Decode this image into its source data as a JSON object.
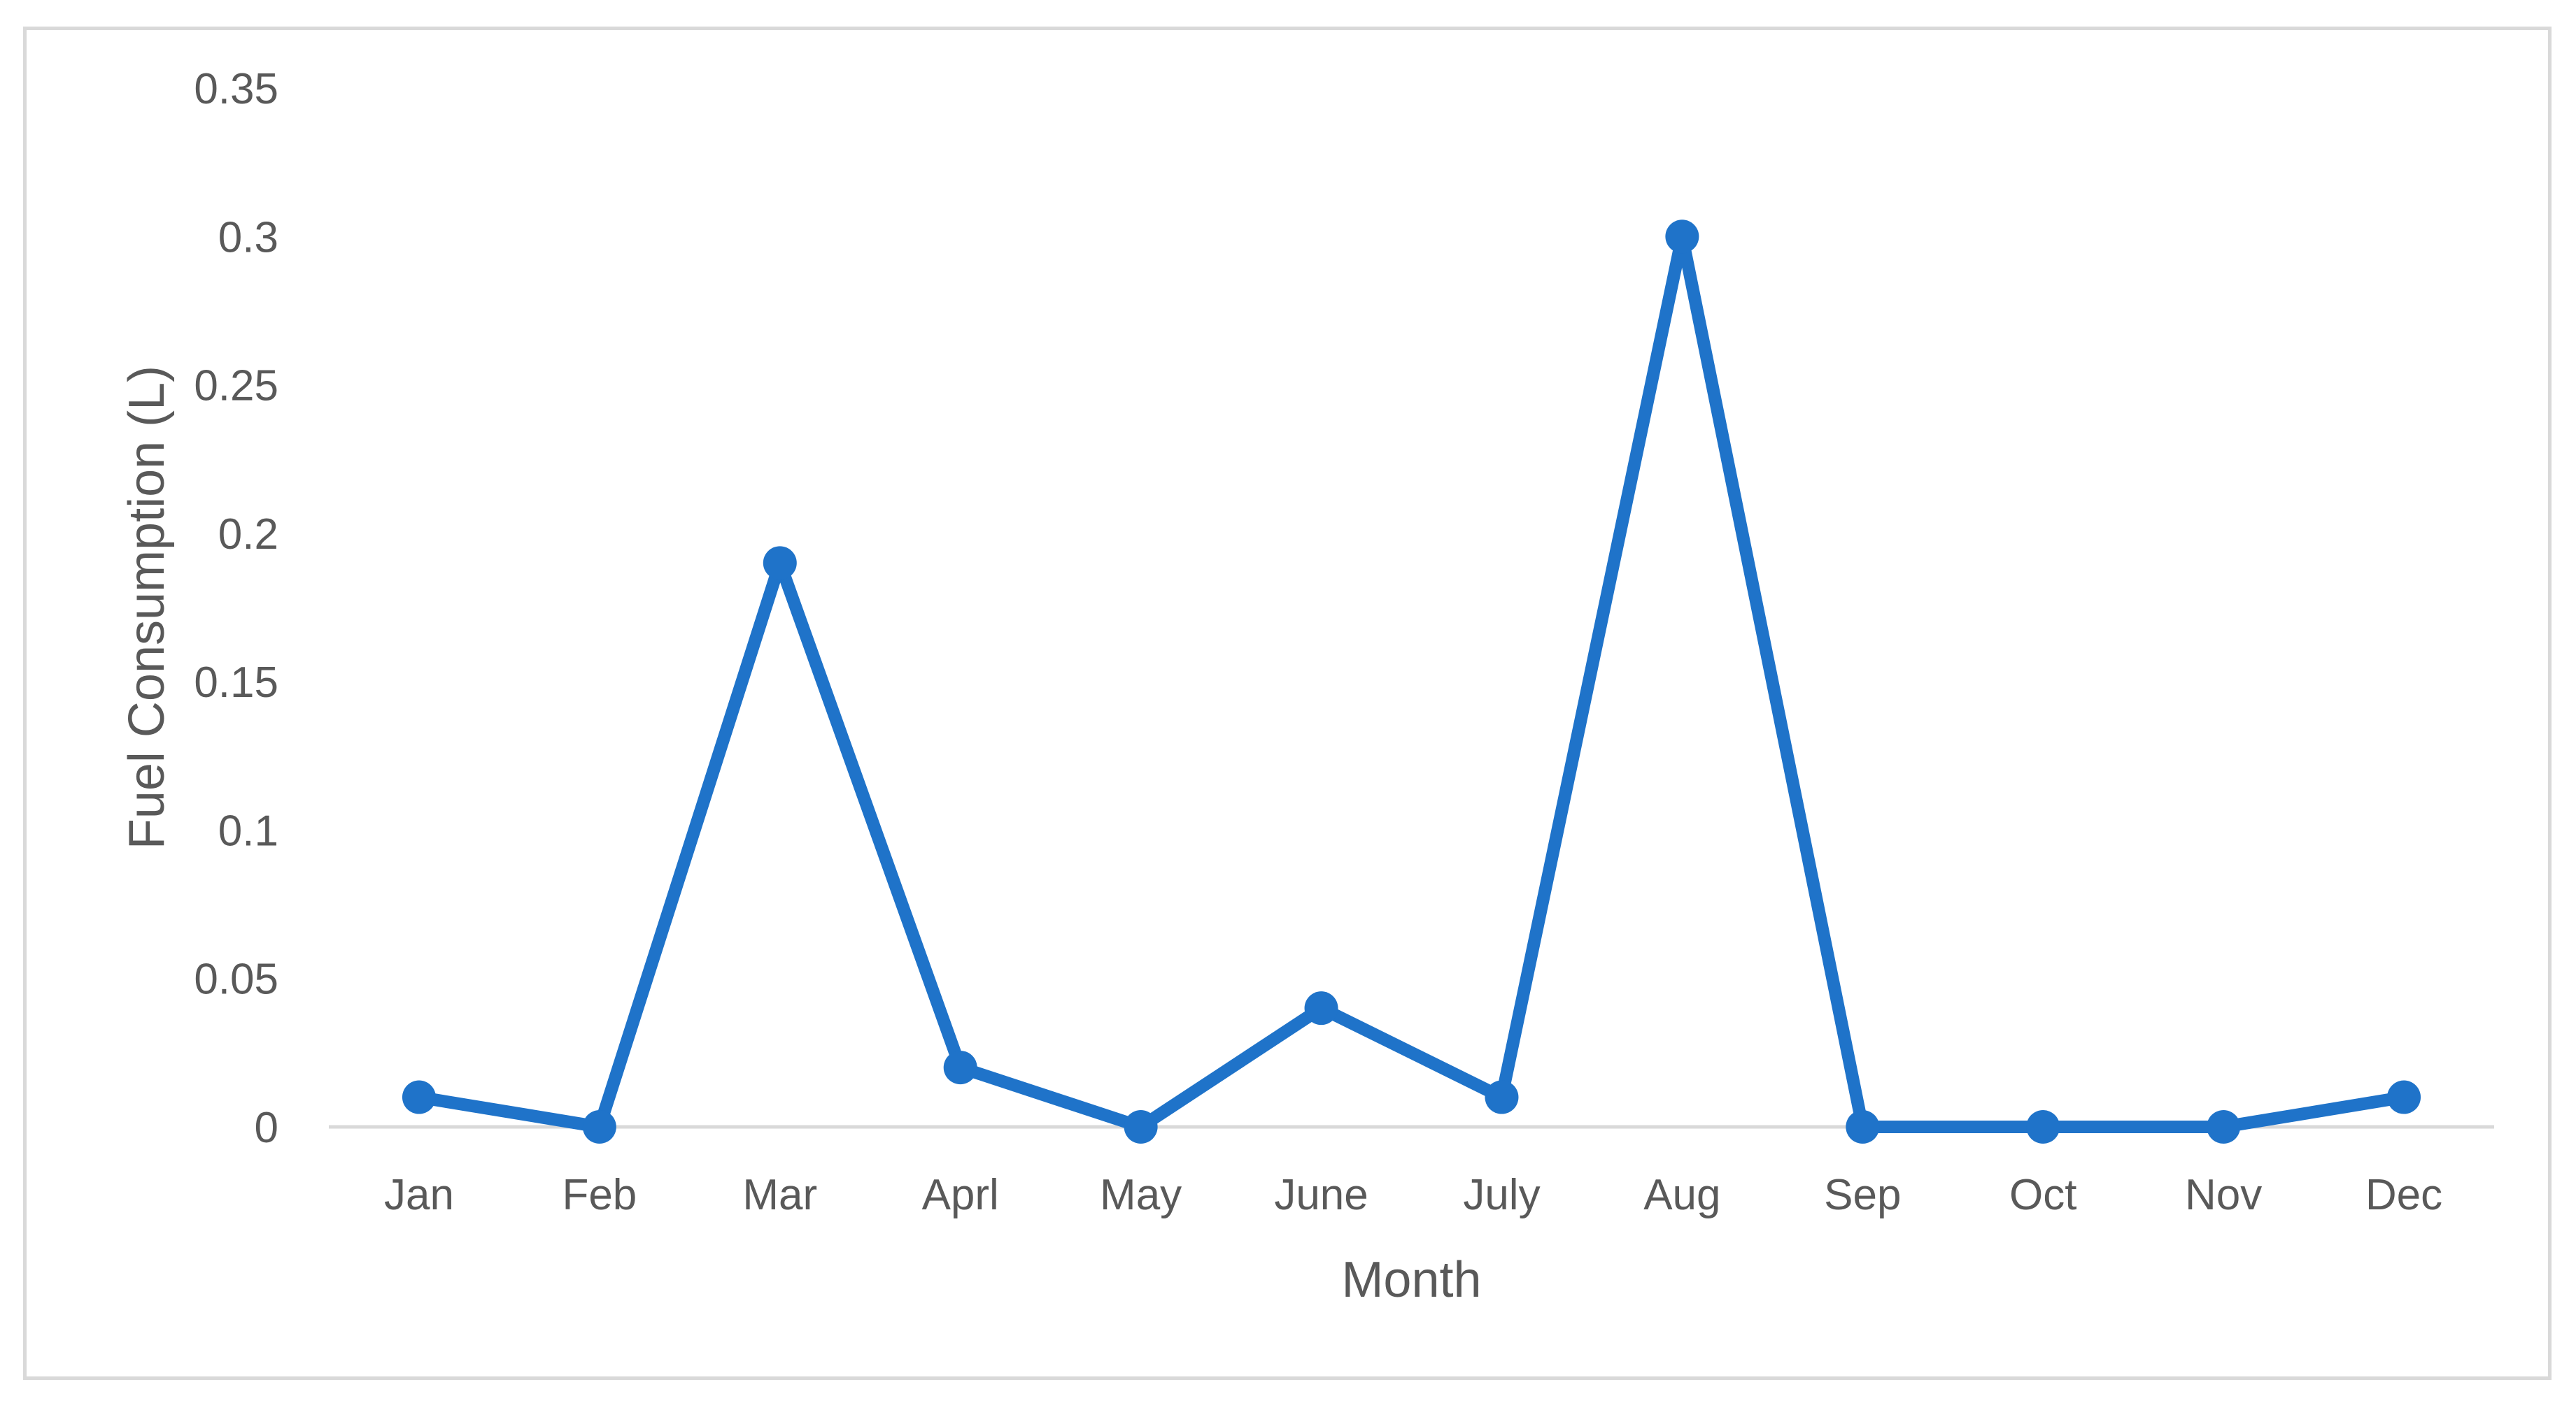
{
  "chart_data": {
    "type": "line",
    "title": "",
    "xlabel": "Month",
    "ylabel": "Fuel Consumption (L)",
    "categories": [
      "Jan",
      "Feb",
      "Mar",
      "Aprl",
      "May",
      "June",
      "July",
      "Aug",
      "Sep",
      "Oct",
      "Nov",
      "Dec"
    ],
    "series": [
      {
        "values": [
          0.01,
          0,
          0.19,
          0.02,
          0,
          0.04,
          0.01,
          0.3,
          0,
          0,
          0,
          0.01
        ],
        "color": "#1f73c9"
      }
    ],
    "ylim": [
      0,
      0.35
    ],
    "yticks": [
      "0",
      "0.05",
      "0.1",
      "0.15",
      "0.2",
      "0.25",
      "0.3",
      "0.35"
    ],
    "grid": false,
    "legend": "none",
    "axis_line_color": "#d9d9d9",
    "text_color": "#595959"
  }
}
